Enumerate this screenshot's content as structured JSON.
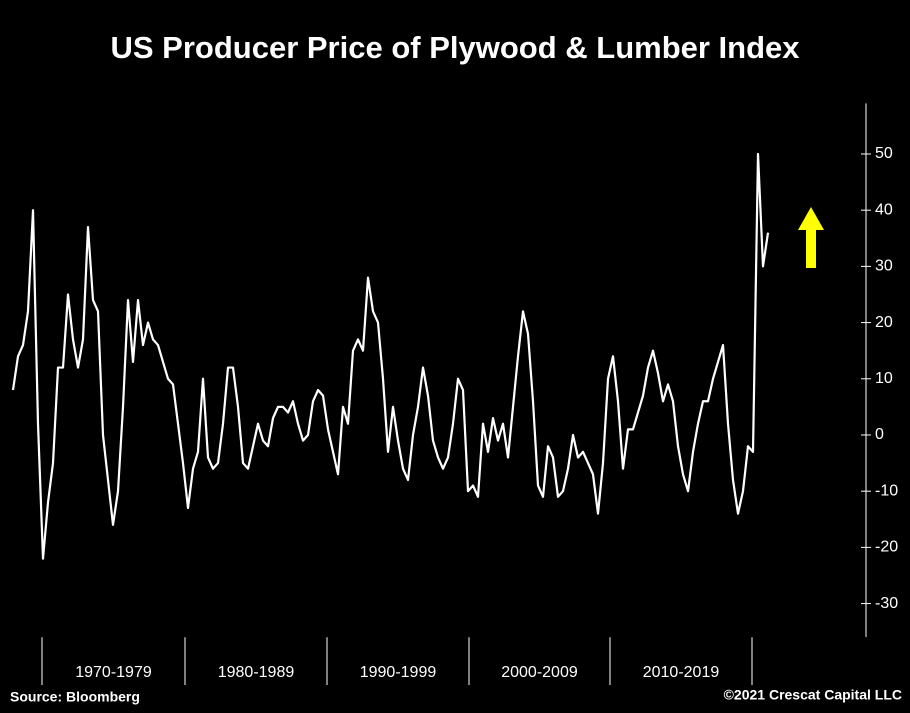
{
  "chart_data": {
    "type": "line",
    "title": "US Producer Price of Plywood & Lumber Index",
    "source": "Source: Bloomberg",
    "copyright": "©2021 Crescat Capital LLC",
    "period_labels": [
      "1970-1979",
      "1980-1989",
      "1990-1999",
      "2000-2009",
      "2010-2019"
    ],
    "color": "#ffffff",
    "values": [
      8,
      14,
      16,
      22,
      40,
      2,
      -22,
      -12,
      -5,
      12,
      12,
      25,
      17,
      12,
      17,
      37,
      24,
      22,
      0,
      -8,
      -16,
      -10,
      5,
      24,
      13,
      24,
      16,
      20,
      17,
      16,
      13,
      10,
      9,
      2,
      -5,
      -13,
      -6,
      -3,
      10,
      -4,
      -6,
      -5,
      2,
      12,
      12,
      5,
      -5,
      -6,
      -2,
      2,
      -1,
      -2,
      3,
      5,
      5,
      4,
      6,
      2,
      -1,
      0,
      6,
      8,
      7,
      1,
      -3,
      -7,
      5,
      2,
      15,
      17,
      15,
      28,
      22,
      20,
      10,
      -3,
      5,
      -1,
      -6,
      -8,
      0,
      5,
      12,
      7,
      -1,
      -4,
      -6,
      -4,
      2,
      10,
      8,
      -10,
      -9,
      -11,
      2,
      -3,
      3,
      -1,
      2,
      -4,
      5,
      14,
      22,
      18,
      6,
      -9,
      -11,
      -2,
      -4,
      -11,
      -10,
      -6,
      0,
      -4,
      -3,
      -5,
      -7,
      -14,
      -5,
      10,
      14,
      6,
      -6,
      1,
      1,
      4,
      7,
      12,
      15,
      11,
      6,
      9,
      6,
      -2,
      -7,
      -10,
      -3,
      2,
      6,
      6,
      10,
      13,
      16,
      2,
      -8,
      -14,
      -10,
      -2,
      -3,
      50,
      30,
      36
    ],
    "ylim": [
      -36,
      59
    ],
    "yticks": [
      -30,
      -20,
      -10,
      0,
      10,
      20,
      30,
      40,
      50
    ]
  }
}
